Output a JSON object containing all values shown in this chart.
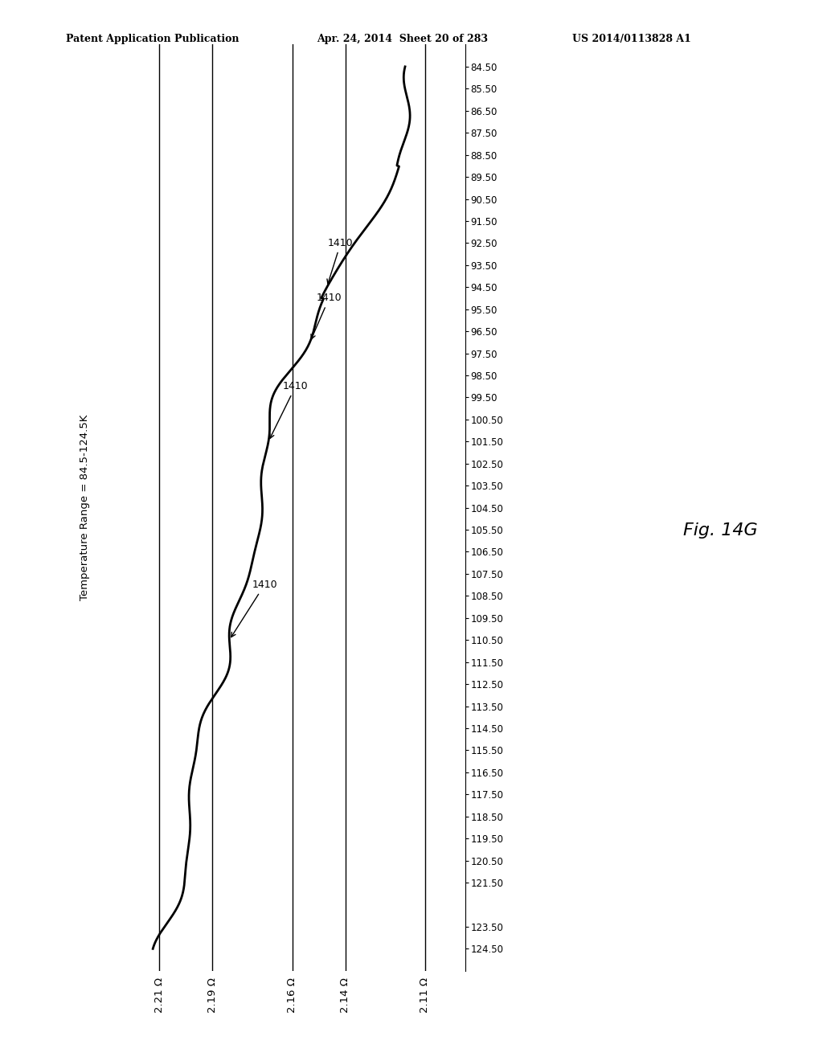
{
  "header_left": "Patent Application Publication",
  "header_mid": "Apr. 24, 2014  Sheet 20 of 283",
  "header_right": "US 2014/0113828 A1",
  "fig_label": "Fig. 14G",
  "ylabel_text": "Temperature Range = 84.5-124.5K",
  "x_tick_labels": [
    "2.21 Ω",
    "2.19 Ω",
    "2.16 Ω",
    "2.14 Ω",
    "2.11 Ω"
  ],
  "y_tick_labels": [
    "84.50",
    "85.50",
    "86.50",
    "87.50",
    "88.50",
    "89.50",
    "90.50",
    "91.50",
    "92.50",
    "93.50",
    "94.50",
    "95.50",
    "96.50",
    "97.50",
    "98.50",
    "99.50",
    "100.50",
    "101.50",
    "102.50",
    "103.50",
    "104.50",
    "105.50",
    "106.50",
    "107.50",
    "108.50",
    "109.50",
    "110.50",
    "111.50",
    "112.50",
    "113.50",
    "114.50",
    "115.50",
    "116.50",
    "117.50",
    "118.50",
    "119.50",
    "120.50",
    "121.50",
    "123.50",
    "124.50"
  ],
  "background_color": "#ffffff",
  "line_color": "#000000",
  "vline_x": [
    2.21,
    2.19,
    2.16,
    2.14,
    2.11
  ],
  "xlim": [
    2.225,
    2.095
  ],
  "ylim": [
    125.5,
    83.5
  ]
}
